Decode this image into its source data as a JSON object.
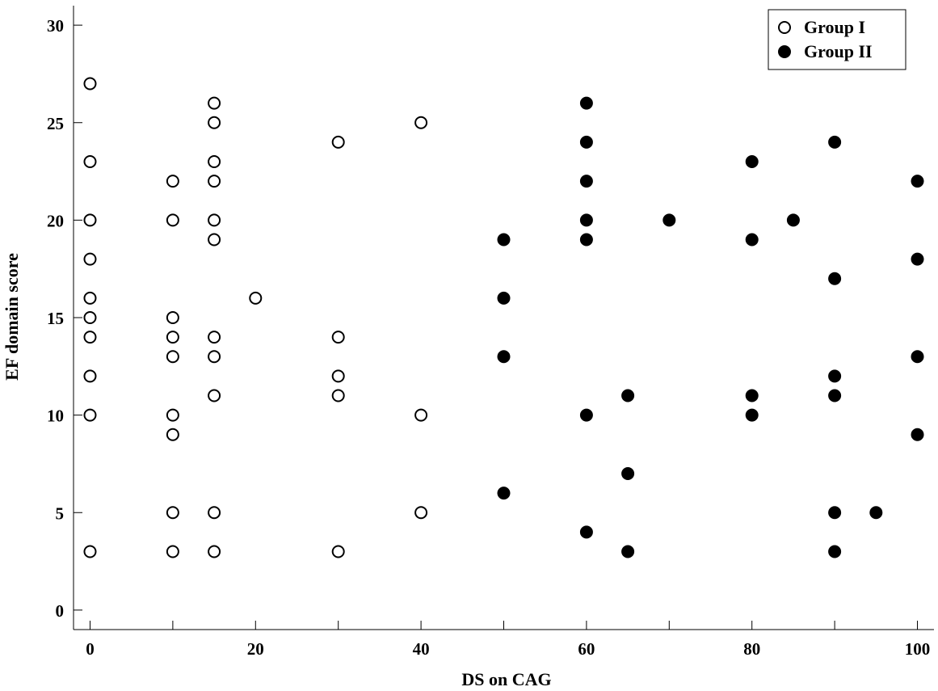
{
  "chart_data": {
    "type": "scatter",
    "title": "",
    "xlabel": "DS on CAG",
    "ylabel": "EF domain score",
    "xlim": [
      -2,
      102
    ],
    "ylim": [
      -1,
      31
    ],
    "xticks": [
      0,
      20,
      40,
      60,
      80,
      100
    ],
    "yticks": [
      0,
      5,
      10,
      15,
      20,
      25,
      30
    ],
    "xminor_ticks": [
      10,
      30,
      50,
      70,
      90
    ],
    "grid": false,
    "legend_position": "top-right",
    "series": [
      {
        "name": "Group I",
        "marker": "open-circle",
        "color": "#000000",
        "points": [
          [
            0,
            27
          ],
          [
            0,
            23
          ],
          [
            0,
            20
          ],
          [
            0,
            18
          ],
          [
            0,
            16
          ],
          [
            0,
            15
          ],
          [
            0,
            14
          ],
          [
            0,
            12
          ],
          [
            0,
            10
          ],
          [
            0,
            3
          ],
          [
            10,
            22
          ],
          [
            10,
            20
          ],
          [
            10,
            15
          ],
          [
            10,
            14
          ],
          [
            10,
            13
          ],
          [
            10,
            10
          ],
          [
            10,
            9
          ],
          [
            10,
            5
          ],
          [
            10,
            3
          ],
          [
            15,
            26
          ],
          [
            15,
            25
          ],
          [
            15,
            23
          ],
          [
            15,
            22
          ],
          [
            15,
            20
          ],
          [
            15,
            19
          ],
          [
            15,
            14
          ],
          [
            15,
            13
          ],
          [
            15,
            11
          ],
          [
            15,
            5
          ],
          [
            15,
            3
          ],
          [
            20,
            16
          ],
          [
            30,
            24
          ],
          [
            30,
            14
          ],
          [
            30,
            12
          ],
          [
            30,
            11
          ],
          [
            30,
            3
          ],
          [
            40,
            25
          ],
          [
            40,
            10
          ],
          [
            40,
            5
          ]
        ]
      },
      {
        "name": "Group II",
        "marker": "filled-circle",
        "color": "#000000",
        "points": [
          [
            50,
            19
          ],
          [
            50,
            16
          ],
          [
            50,
            13
          ],
          [
            50,
            6
          ],
          [
            60,
            26
          ],
          [
            60,
            24
          ],
          [
            60,
            22
          ],
          [
            60,
            20
          ],
          [
            60,
            19
          ],
          [
            60,
            10
          ],
          [
            60,
            4
          ],
          [
            65,
            11
          ],
          [
            65,
            7
          ],
          [
            65,
            3
          ],
          [
            70,
            20
          ],
          [
            80,
            23
          ],
          [
            80,
            19
          ],
          [
            80,
            11
          ],
          [
            80,
            10
          ],
          [
            85,
            20
          ],
          [
            90,
            24
          ],
          [
            90,
            17
          ],
          [
            90,
            12
          ],
          [
            90,
            11
          ],
          [
            90,
            5
          ],
          [
            90,
            3
          ],
          [
            95,
            5
          ],
          [
            100,
            22
          ],
          [
            100,
            18
          ],
          [
            100,
            13
          ],
          [
            100,
            9
          ]
        ]
      }
    ]
  }
}
